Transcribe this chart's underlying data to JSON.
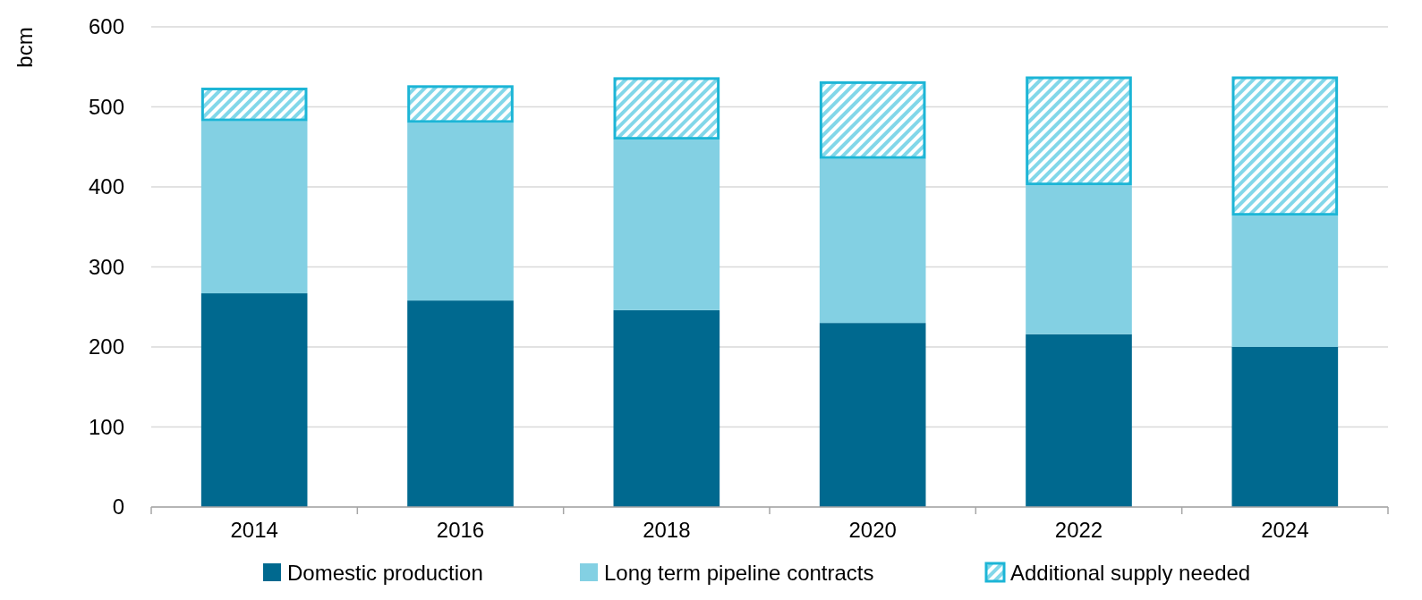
{
  "chart_data": {
    "type": "bar",
    "stacked": true,
    "ylabel": "bcm",
    "categories": [
      "2014",
      "2016",
      "2018",
      "2020",
      "2022",
      "2024"
    ],
    "series": [
      {
        "name": "Domestic production",
        "color": "#00698f",
        "values": [
          267,
          258,
          246,
          230,
          216,
          200
        ]
      },
      {
        "name": "Long term pipeline contracts",
        "color": "#83d0e3",
        "values": [
          215,
          222,
          213,
          205,
          186,
          164
        ]
      },
      {
        "name": "Additional supply needed",
        "color": "#1cb5d6",
        "values": [
          42,
          47,
          78,
          97,
          136,
          174
        ]
      }
    ],
    "ylim": [
      0,
      600
    ],
    "yticks": [
      0,
      100,
      200,
      300,
      400,
      500,
      600
    ],
    "grid": "y",
    "legend": "bottom"
  }
}
